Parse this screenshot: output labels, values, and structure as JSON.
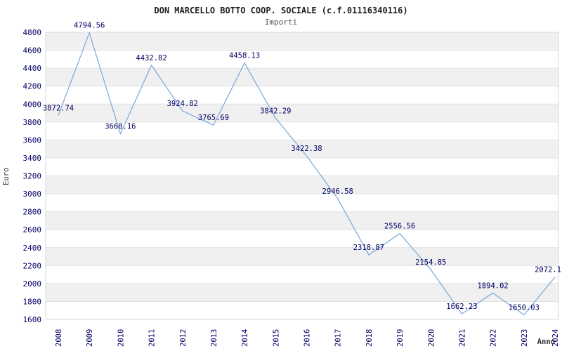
{
  "header": {
    "title": "DON MARCELLO BOTTO COOP. SOCIALE (c.f.01116340116)",
    "subtitle": "Importi"
  },
  "chart_data": {
    "type": "line",
    "title": "DON MARCELLO BOTTO COOP. SOCIALE (c.f.01116340116)",
    "subtitle": "Importi",
    "xlabel": "Anno",
    "ylabel": "Euro",
    "categories": [
      "2008",
      "2009",
      "2010",
      "2011",
      "2012",
      "2013",
      "2014",
      "2015",
      "2016",
      "2017",
      "2018",
      "2019",
      "2020",
      "2021",
      "2022",
      "2023",
      "2024"
    ],
    "values": [
      3872.74,
      4794.56,
      3668.16,
      4432.82,
      3924.82,
      3765.69,
      4458.13,
      3842.29,
      3422.38,
      2946.58,
      2318.87,
      2556.56,
      2154.85,
      1662.23,
      1894.02,
      1650.03,
      2072.1
    ],
    "point_labels": [
      "3872.74",
      "4794.56",
      "3668.16",
      "4432.82",
      "3924.82",
      "3765.69",
      "4458.13",
      "3842.29",
      "3422.38",
      "2946.58",
      "2318.87",
      "2556.56",
      "2154.85",
      "1662.23",
      "1894.02",
      "1650.03",
      "2072.1"
    ],
    "ylim": [
      1600,
      4800
    ],
    "ytick_step": 200,
    "grid": true,
    "legend_position": "none",
    "colors": {
      "line": "#7aa7d9",
      "data_label": "#000066",
      "tick_label": "#000066",
      "band": "#f0f0f0",
      "grid_line": "#e2e2e2",
      "plot_border": "#d8d8d8",
      "axis_label": "#333333",
      "title": "#222222",
      "subtitle": "#555555"
    }
  }
}
